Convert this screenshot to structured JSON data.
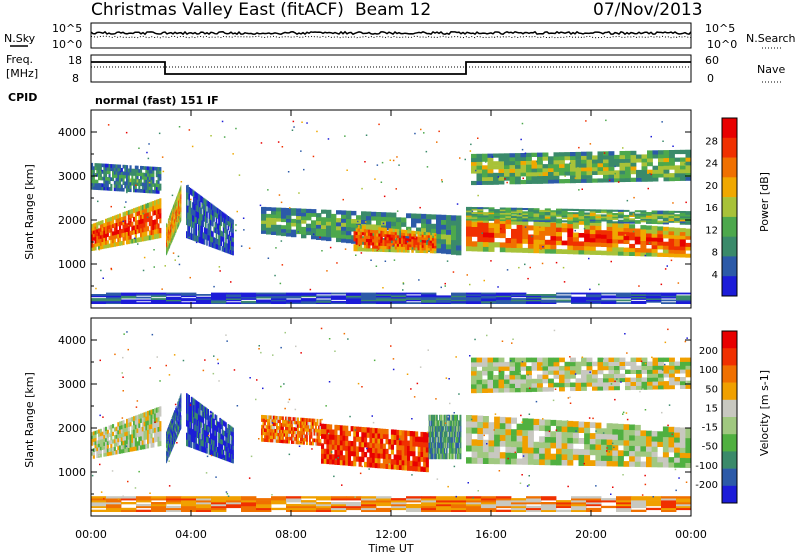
{
  "header": {
    "station": "Christmas Valley East (fitACF)",
    "beam": "Beam 12",
    "date": "07/Nov/2013"
  },
  "top_panels": {
    "nsky_label": "N.Sky",
    "nsearch_label": "N.Search",
    "nsky_ticks": [
      "10^5",
      "10^0"
    ],
    "nsky_right_ticks": [
      "10^5",
      "10^0"
    ],
    "freq_label_1": "Freq.",
    "freq_label_2": "[MHz]",
    "freq_ticks": [
      "18",
      "8"
    ],
    "nave_label": "Nave",
    "nave_ticks": [
      "60",
      "0"
    ],
    "cpid_label": "CPID",
    "cpid_value": "normal (fast) 151 IF"
  },
  "x_axis": {
    "ticks": [
      "00:00",
      "04:00",
      "08:00",
      "12:00",
      "16:00",
      "20:00",
      "00:00"
    ],
    "label": "Time UT"
  },
  "colors": {
    "power": [
      "#1c1cd8",
      "#2c5aa8",
      "#3a8a6a",
      "#4da84c",
      "#a8c238",
      "#f0a800",
      "#f07000",
      "#f03000",
      "#e80000"
    ],
    "velocity": [
      "#1c1cd8",
      "#2c5aa8",
      "#3a8a6a",
      "#50b040",
      "#a0c880",
      "#c8c8c0",
      "#f0a000",
      "#f07000",
      "#f03000",
      "#e80000"
    ]
  },
  "chart_data": [
    {
      "type": "heatmap",
      "panel": "power",
      "ylabel": "Slant Range [km]",
      "xlabel": "",
      "xlim": [
        0,
        24
      ],
      "ylim": [
        0,
        4500
      ],
      "y_ticks": [
        "1000",
        "2000",
        "3000",
        "4000"
      ],
      "colorbar_label": "Power [dB]",
      "colorbar_ticks": [
        "4",
        "8",
        "12",
        "16",
        "20",
        "24",
        "28"
      ],
      "bands": [
        {
          "x": [
            0.0,
            2.8
          ],
          "y_low": [
            1300,
            1600
          ],
          "y_high": [
            1900,
            2500
          ],
          "level": 0.85
        },
        {
          "x": [
            0.0,
            2.8
          ],
          "y_low": [
            2700,
            2600
          ],
          "y_high": [
            3300,
            3200
          ],
          "level": 0.3
        },
        {
          "x": [
            3.0,
            3.6
          ],
          "y_low": [
            1200,
            2000
          ],
          "y_high": [
            1900,
            2800
          ],
          "level": 0.7
        },
        {
          "x": [
            3.8,
            5.7
          ],
          "y_low": [
            1600,
            1200
          ],
          "y_high": [
            2800,
            2000
          ],
          "level": 0.2
        },
        {
          "x": [
            6.8,
            14.8
          ],
          "y_low": [
            1700,
            1200
          ],
          "y_high": [
            2300,
            2100
          ],
          "level": 0.35
        },
        {
          "x": [
            10.5,
            13.8
          ],
          "y_low": [
            1300,
            1250
          ],
          "y_high": [
            1900,
            1700
          ],
          "level": 0.85
        },
        {
          "x": [
            15.0,
            24.0
          ],
          "y_low": [
            1300,
            1150
          ],
          "y_high": [
            2200,
            1800
          ],
          "level": 0.8
        },
        {
          "x": [
            15.0,
            24.0
          ],
          "y_low": [
            2000,
            1900
          ],
          "y_high": [
            2300,
            2200
          ],
          "level": 0.45
        },
        {
          "x": [
            15.2,
            24.0
          ],
          "y_low": [
            2800,
            2900
          ],
          "y_high": [
            3500,
            3600
          ],
          "level": 0.45
        },
        {
          "x": [
            0.0,
            24.0
          ],
          "y_low": [
            100,
            100
          ],
          "y_high": [
            350,
            350
          ],
          "level": 0.15
        }
      ]
    },
    {
      "type": "heatmap",
      "panel": "velocity",
      "ylabel": "Slant Range [km]",
      "xlabel": "Time UT",
      "xlim": [
        0,
        24
      ],
      "ylim": [
        0,
        4500
      ],
      "y_ticks": [
        "1000",
        "2000",
        "3000",
        "4000"
      ],
      "colorbar_label": "Velocity [m s-1]",
      "colorbar_ticks": [
        "200",
        "100",
        "50",
        "15",
        "-15",
        "-50",
        "-100",
        "-200"
      ],
      "bands": [
        {
          "x": [
            0.0,
            2.8
          ],
          "y_low": [
            1300,
            1600
          ],
          "y_high": [
            1900,
            2500
          ],
          "level": 0.5
        },
        {
          "x": [
            3.0,
            3.6
          ],
          "y_low": [
            1200,
            2000
          ],
          "y_high": [
            1900,
            2800
          ],
          "level": 0.15
        },
        {
          "x": [
            3.8,
            5.7
          ],
          "y_low": [
            1600,
            1200
          ],
          "y_high": [
            2800,
            2000
          ],
          "level": 0.1
        },
        {
          "x": [
            6.8,
            9.2
          ],
          "y_low": [
            1700,
            1600
          ],
          "y_high": [
            2300,
            2200
          ],
          "level": 0.75
        },
        {
          "x": [
            9.2,
            13.5
          ],
          "y_low": [
            1200,
            1000
          ],
          "y_high": [
            2100,
            1900
          ],
          "level": 0.85
        },
        {
          "x": [
            13.5,
            14.8
          ],
          "y_low": [
            1300,
            1300
          ],
          "y_high": [
            2300,
            2300
          ],
          "level": 0.3
        },
        {
          "x": [
            15.0,
            24.0
          ],
          "y_low": [
            1200,
            1100
          ],
          "y_high": [
            2300,
            2000
          ],
          "level": 0.5
        },
        {
          "x": [
            15.2,
            24.0
          ],
          "y_low": [
            2800,
            2900
          ],
          "y_high": [
            3600,
            3600
          ],
          "level": 0.5
        },
        {
          "x": [
            0.0,
            24.0
          ],
          "y_low": [
            100,
            100
          ],
          "y_high": [
            450,
            450
          ],
          "level": 0.7
        }
      ]
    }
  ]
}
